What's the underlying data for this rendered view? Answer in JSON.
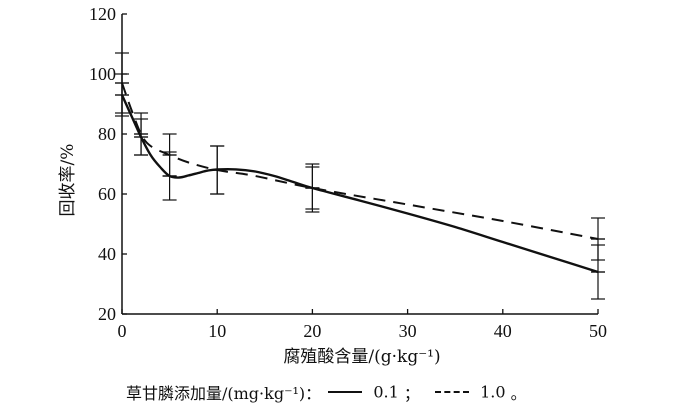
{
  "chart_data": {
    "type": "line",
    "xlabel": "腐殖酸含量/(g·kg⁻¹)",
    "ylabel": "回收率/%",
    "xlim": [
      0,
      50
    ],
    "ylim": [
      20,
      120
    ],
    "x_ticks": [
      0,
      10,
      20,
      30,
      40,
      50
    ],
    "y_ticks": [
      20,
      40,
      60,
      80,
      100,
      120
    ],
    "grid": false,
    "legend_position": "bottom",
    "legend_title": "草甘膦添加量/(mg·kg⁻¹)：",
    "series": [
      {
        "name": "0.1",
        "style": "solid",
        "points": [
          {
            "x": 0,
            "y": 93,
            "err": 7
          },
          {
            "x": 2,
            "y": 79,
            "err": 6
          },
          {
            "x": 5,
            "y": 66,
            "err": 8
          },
          {
            "x": 10,
            "y": 68,
            "err": 8
          },
          {
            "x": 20,
            "y": 62,
            "err": 8
          },
          {
            "x": 50,
            "y": 34,
            "err": 9
          }
        ],
        "curve": [
          [
            0,
            93
          ],
          [
            1,
            86
          ],
          [
            2,
            79
          ],
          [
            3,
            73
          ],
          [
            4,
            69
          ],
          [
            5,
            66
          ],
          [
            6,
            65.5
          ],
          [
            7,
            66.2
          ],
          [
            8,
            67
          ],
          [
            9,
            67.8
          ],
          [
            10,
            68.2
          ],
          [
            12,
            68.2
          ],
          [
            14,
            67.5
          ],
          [
            16,
            66
          ],
          [
            18,
            64
          ],
          [
            20,
            62
          ],
          [
            25,
            57.8
          ],
          [
            30,
            53.5
          ],
          [
            35,
            49
          ],
          [
            40,
            44
          ],
          [
            45,
            39
          ],
          [
            50,
            34
          ]
        ]
      },
      {
        "name": "1.0",
        "style": "dashed",
        "points": [
          {
            "x": 0,
            "y": 97,
            "err": 10
          },
          {
            "x": 2,
            "y": 80,
            "err": 7
          },
          {
            "x": 5,
            "y": 73,
            "err": 7
          },
          {
            "x": 10,
            "y": 68,
            "err": 8
          },
          {
            "x": 20,
            "y": 62,
            "err": 7
          },
          {
            "x": 50,
            "y": 45,
            "err": 7
          }
        ],
        "curve": [
          [
            0,
            97
          ],
          [
            1,
            88
          ],
          [
            2,
            80
          ],
          [
            3,
            76
          ],
          [
            5,
            73
          ],
          [
            7,
            70.5
          ],
          [
            10,
            68
          ],
          [
            14,
            66
          ],
          [
            20,
            62
          ],
          [
            30,
            56.5
          ],
          [
            40,
            51
          ],
          [
            50,
            45
          ]
        ]
      }
    ]
  }
}
